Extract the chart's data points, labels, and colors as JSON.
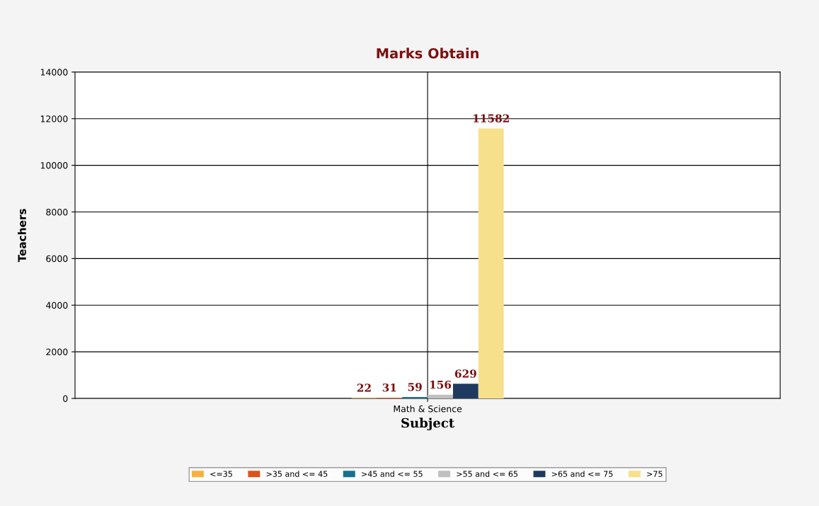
{
  "chart_data": {
    "type": "bar",
    "title": "Marks Obtain",
    "xlabel": "Subject",
    "ylabel": "Teachers",
    "categories": [
      "Math & Science"
    ],
    "series": [
      {
        "name": "<=35",
        "color": "#f5b041",
        "values": [
          22
        ]
      },
      {
        "name": ">35 and <= 45",
        "color": "#d9531e",
        "values": [
          31
        ]
      },
      {
        "name": ">45 and <= 55",
        "color": "#1b6f8e",
        "values": [
          59
        ]
      },
      {
        "name": ">55 and <= 65",
        "color": "#bfbfbf",
        "values": [
          156
        ]
      },
      {
        "name": ">65 and <= 75",
        "color": "#1f3a5f",
        "values": [
          629
        ]
      },
      {
        "name": ">75",
        "color": "#f7e08c",
        "values": [
          11582
        ]
      }
    ],
    "ylim": [
      0,
      14000
    ],
    "yticks": [
      0,
      2000,
      4000,
      6000,
      8000,
      10000,
      12000,
      14000
    ],
    "grid": true,
    "legend": "bottom",
    "data_labels": true
  }
}
